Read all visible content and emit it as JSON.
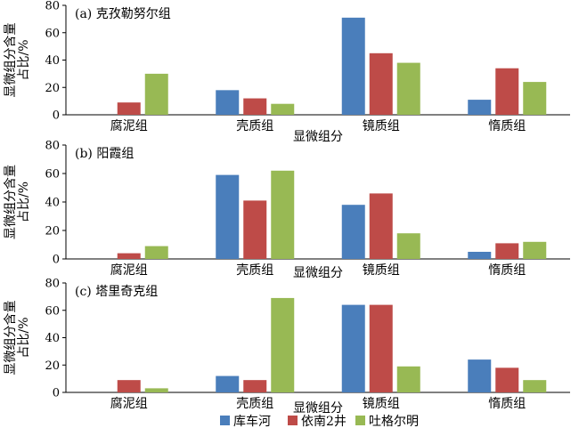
{
  "chart_data": [
    {
      "type": "bar",
      "title": "(a) 克孜勒努尔组",
      "xlabel": "显微组分",
      "ylabel": "显微组分含量占比/%",
      "ylim": [
        0,
        80
      ],
      "yticks": [
        "0",
        "20",
        "40",
        "60",
        "80"
      ],
      "categories": [
        "腐泥组",
        "壳质组",
        "镜质组",
        "惰质组"
      ],
      "series": [
        {
          "name": "库车河",
          "values": [
            0,
            18,
            71,
            11
          ]
        },
        {
          "name": "依南2井",
          "values": [
            9,
            12,
            45,
            34
          ]
        },
        {
          "name": "吐格尔明",
          "values": [
            30,
            8,
            38,
            24
          ]
        }
      ]
    },
    {
      "type": "bar",
      "title": "(b) 阳霞组",
      "xlabel": "显微组分",
      "ylabel": "显微组分含量占比/%",
      "ylim": [
        0,
        80
      ],
      "yticks": [
        "0",
        "20",
        "40",
        "60",
        "80"
      ],
      "categories": [
        "腐泥组",
        "壳质组",
        "镜质组",
        "惰质组"
      ],
      "series": [
        {
          "name": "库车河",
          "values": [
            0,
            59,
            38,
            5
          ]
        },
        {
          "name": "依南2井",
          "values": [
            4,
            41,
            46,
            11
          ]
        },
        {
          "name": "吐格尔明",
          "values": [
            9,
            62,
            18,
            12
          ]
        }
      ]
    },
    {
      "type": "bar",
      "title": "(c) 塔里奇克组",
      "xlabel": "显微组分",
      "ylabel": "显微组分含量占比/%",
      "ylim": [
        0,
        80
      ],
      "yticks": [
        "0",
        "20",
        "40",
        "60",
        "80"
      ],
      "categories": [
        "腐泥组",
        "壳质组",
        "镜质组",
        "惰质组"
      ],
      "series": [
        {
          "name": "库车河",
          "values": [
            0,
            12,
            64,
            24
          ]
        },
        {
          "name": "依南2井",
          "values": [
            9,
            9,
            64,
            18
          ]
        },
        {
          "name": "吐格尔明",
          "values": [
            3,
            69,
            19,
            9
          ]
        }
      ]
    }
  ],
  "legend": {
    "placement": "bottom-center",
    "items": [
      {
        "name": "库车河",
        "color": "#4a7ebb"
      },
      {
        "name": "依南2井",
        "color": "#be4b48"
      },
      {
        "name": "吐格尔明",
        "color": "#98b954"
      }
    ]
  }
}
